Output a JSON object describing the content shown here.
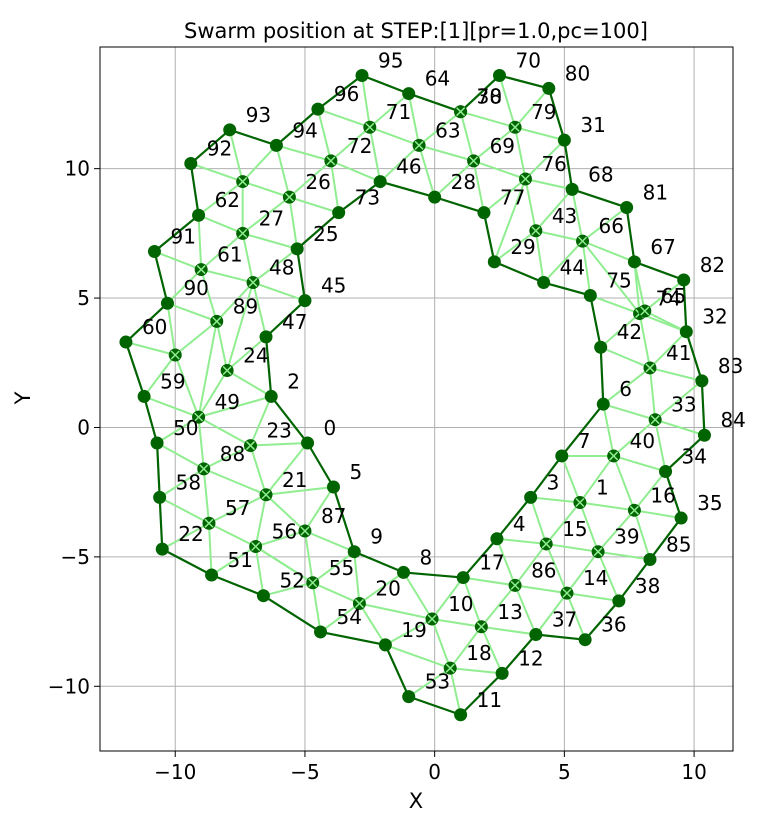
{
  "chart_data": {
    "type": "scatter",
    "title": "Swarm position at STEP:[1][pr=1.0,pc=100]",
    "xlabel": "X",
    "ylabel": "Y",
    "xlim": [
      -12.9,
      11.5
    ],
    "ylim": [
      -12.5,
      14.7
    ],
    "xticks": [
      -10,
      -5,
      0,
      5,
      10
    ],
    "yticks": [
      -10,
      -5,
      0,
      5,
      10
    ],
    "xtick_labels": [
      "−10",
      "−5",
      "0",
      "5",
      "10"
    ],
    "ytick_labels": [
      "−10",
      "−5",
      "0",
      "5",
      "10"
    ],
    "grid": true,
    "colors": {
      "boundary_node": "#006400",
      "boundary_edge": "#006400",
      "inner_edge": "#90ee90",
      "inner_node_fill": "#006400",
      "inner_node_hatch": "#90ee90"
    },
    "agents": [
      {
        "id": "0",
        "x": -4.9,
        "y": -0.6,
        "type": "boundary"
      },
      {
        "id": "2",
        "x": -6.3,
        "y": 1.2,
        "type": "boundary"
      },
      {
        "id": "5",
        "x": -3.9,
        "y": -2.3,
        "type": "boundary"
      },
      {
        "id": "9",
        "x": -3.1,
        "y": -4.8,
        "type": "boundary"
      },
      {
        "id": "8",
        "x": -1.2,
        "y": -5.6,
        "type": "boundary"
      },
      {
        "id": "17",
        "x": 1.1,
        "y": -5.8,
        "type": "boundary"
      },
      {
        "id": "4",
        "x": 2.4,
        "y": -4.3,
        "type": "boundary"
      },
      {
        "id": "3",
        "x": 3.7,
        "y": -2.7,
        "type": "boundary"
      },
      {
        "id": "7",
        "x": 4.9,
        "y": -1.1,
        "type": "boundary"
      },
      {
        "id": "6",
        "x": 6.5,
        "y": 0.9,
        "type": "boundary"
      },
      {
        "id": "42",
        "x": 6.4,
        "y": 3.1,
        "type": "boundary"
      },
      {
        "id": "75",
        "x": 6.0,
        "y": 5.1,
        "type": "boundary"
      },
      {
        "id": "44",
        "x": 4.2,
        "y": 5.6,
        "type": "boundary"
      },
      {
        "id": "29",
        "x": 2.3,
        "y": 6.4,
        "type": "boundary"
      },
      {
        "id": "77",
        "x": 1.9,
        "y": 8.3,
        "type": "boundary"
      },
      {
        "id": "28",
        "x": 0.0,
        "y": 8.9,
        "type": "boundary"
      },
      {
        "id": "46",
        "x": -2.1,
        "y": 9.5,
        "type": "boundary"
      },
      {
        "id": "73",
        "x": -3.7,
        "y": 8.3,
        "type": "boundary"
      },
      {
        "id": "25",
        "x": -5.3,
        "y": 6.9,
        "type": "boundary"
      },
      {
        "id": "45",
        "x": -5.0,
        "y": 4.9,
        "type": "boundary"
      },
      {
        "id": "47",
        "x": -6.5,
        "y": 3.5,
        "type": "boundary"
      },
      {
        "id": "95",
        "x": -2.8,
        "y": 13.6,
        "type": "boundary"
      },
      {
        "id": "64",
        "x": -1.0,
        "y": 12.9,
        "type": "boundary"
      },
      {
        "id": "30",
        "x": 1.0,
        "y": 12.2,
        "type": "boundary"
      },
      {
        "id": "70",
        "x": 2.5,
        "y": 13.6,
        "type": "boundary"
      },
      {
        "id": "80",
        "x": 4.4,
        "y": 13.1,
        "type": "boundary"
      },
      {
        "id": "31",
        "x": 5.0,
        "y": 11.1,
        "type": "boundary"
      },
      {
        "id": "68",
        "x": 5.3,
        "y": 9.2,
        "type": "boundary"
      },
      {
        "id": "81",
        "x": 7.4,
        "y": 8.5,
        "type": "boundary"
      },
      {
        "id": "67",
        "x": 7.7,
        "y": 6.4,
        "type": "boundary"
      },
      {
        "id": "82",
        "x": 9.6,
        "y": 5.7,
        "type": "boundary"
      },
      {
        "id": "32",
        "x": 9.7,
        "y": 3.7,
        "type": "boundary"
      },
      {
        "id": "83",
        "x": 10.3,
        "y": 1.8,
        "type": "boundary"
      },
      {
        "id": "84",
        "x": 10.4,
        "y": -0.3,
        "type": "boundary"
      },
      {
        "id": "34",
        "x": 8.9,
        "y": -1.7,
        "type": "boundary"
      },
      {
        "id": "35",
        "x": 9.5,
        "y": -3.5,
        "type": "boundary"
      },
      {
        "id": "85",
        "x": 8.3,
        "y": -5.1,
        "type": "boundary"
      },
      {
        "id": "38",
        "x": 7.1,
        "y": -6.7,
        "type": "boundary"
      },
      {
        "id": "36",
        "x": 5.8,
        "y": -8.2,
        "type": "boundary"
      },
      {
        "id": "37",
        "x": 3.9,
        "y": -8.0,
        "type": "boundary"
      },
      {
        "id": "12",
        "x": 2.6,
        "y": -9.5,
        "type": "boundary"
      },
      {
        "id": "11",
        "x": 1.0,
        "y": -11.1,
        "type": "boundary"
      },
      {
        "id": "53",
        "x": -1.0,
        "y": -10.4,
        "type": "boundary"
      },
      {
        "id": "19",
        "x": -1.9,
        "y": -8.4,
        "type": "boundary"
      },
      {
        "id": "54",
        "x": -4.4,
        "y": -7.9,
        "type": "boundary"
      },
      {
        "id": "52",
        "x": -6.6,
        "y": -6.5,
        "type": "boundary"
      },
      {
        "id": "51",
        "x": -8.6,
        "y": -5.7,
        "type": "boundary"
      },
      {
        "id": "22",
        "x": -10.5,
        "y": -4.7,
        "type": "boundary"
      },
      {
        "id": "58",
        "x": -10.6,
        "y": -2.7,
        "type": "boundary"
      },
      {
        "id": "50",
        "x": -10.7,
        "y": -0.6,
        "type": "boundary"
      },
      {
        "id": "59",
        "x": -11.2,
        "y": 1.2,
        "type": "boundary"
      },
      {
        "id": "60",
        "x": -11.9,
        "y": 3.3,
        "type": "boundary"
      },
      {
        "id": "90",
        "x": -10.3,
        "y": 4.8,
        "type": "boundary"
      },
      {
        "id": "91",
        "x": -10.8,
        "y": 6.8,
        "type": "boundary"
      },
      {
        "id": "62",
        "x": -9.1,
        "y": 8.2,
        "type": "boundary"
      },
      {
        "id": "92",
        "x": -9.4,
        "y": 10.2,
        "type": "boundary"
      },
      {
        "id": "93",
        "x": -7.9,
        "y": 11.5,
        "type": "boundary"
      },
      {
        "id": "94",
        "x": -6.1,
        "y": 10.9,
        "type": "boundary"
      },
      {
        "id": "96",
        "x": -4.5,
        "y": 12.3,
        "type": "boundary"
      },
      {
        "id": "21",
        "x": -6.5,
        "y": -2.6,
        "type": "inner"
      },
      {
        "id": "23",
        "x": -7.1,
        "y": -0.7,
        "type": "inner"
      },
      {
        "id": "88",
        "x": -8.9,
        "y": -1.6,
        "type": "inner"
      },
      {
        "id": "57",
        "x": -8.7,
        "y": -3.7,
        "type": "inner"
      },
      {
        "id": "56",
        "x": -6.9,
        "y": -4.6,
        "type": "inner"
      },
      {
        "id": "87",
        "x": -5.0,
        "y": -4.0,
        "type": "inner"
      },
      {
        "id": "55",
        "x": -4.7,
        "y": -6.0,
        "type": "inner"
      },
      {
        "id": "20",
        "x": -2.9,
        "y": -6.8,
        "type": "inner"
      },
      {
        "id": "10",
        "x": -0.1,
        "y": -7.4,
        "type": "inner"
      },
      {
        "id": "13",
        "x": 1.8,
        "y": -7.7,
        "type": "inner"
      },
      {
        "id": "18",
        "x": 0.6,
        "y": -9.3,
        "type": "inner"
      },
      {
        "id": "86",
        "x": 3.1,
        "y": -6.1,
        "type": "inner"
      },
      {
        "id": "14",
        "x": 5.1,
        "y": -6.4,
        "type": "inner"
      },
      {
        "id": "15",
        "x": 4.3,
        "y": -4.5,
        "type": "inner"
      },
      {
        "id": "39",
        "x": 6.3,
        "y": -4.8,
        "type": "inner"
      },
      {
        "id": "1",
        "x": 5.6,
        "y": -2.9,
        "type": "inner"
      },
      {
        "id": "16",
        "x": 7.7,
        "y": -3.2,
        "type": "inner"
      },
      {
        "id": "40",
        "x": 6.9,
        "y": -1.1,
        "type": "inner"
      },
      {
        "id": "33",
        "x": 8.5,
        "y": 0.3,
        "type": "inner"
      },
      {
        "id": "41",
        "x": 8.3,
        "y": 2.3,
        "type": "inner"
      },
      {
        "id": "74",
        "x": 7.9,
        "y": 4.4,
        "type": "inner"
      },
      {
        "id": "65",
        "x": 8.1,
        "y": 4.5,
        "type": "inner"
      },
      {
        "id": "66",
        "x": 5.7,
        "y": 7.2,
        "type": "inner"
      },
      {
        "id": "43",
        "x": 3.9,
        "y": 7.6,
        "type": "inner"
      },
      {
        "id": "76",
        "x": 3.5,
        "y": 9.6,
        "type": "inner"
      },
      {
        "id": "69",
        "x": 1.5,
        "y": 10.3,
        "type": "inner"
      },
      {
        "id": "79",
        "x": 3.1,
        "y": 11.6,
        "type": "inner"
      },
      {
        "id": "78",
        "x": 1.0,
        "y": 12.2,
        "type": "inner"
      },
      {
        "id": "63",
        "x": -0.6,
        "y": 10.9,
        "type": "inner"
      },
      {
        "id": "71",
        "x": -2.5,
        "y": 11.6,
        "type": "inner"
      },
      {
        "id": "72",
        "x": -4.0,
        "y": 10.3,
        "type": "inner"
      },
      {
        "id": "26",
        "x": -5.6,
        "y": 8.9,
        "type": "inner"
      },
      {
        "id": "27",
        "x": -7.4,
        "y": 7.5,
        "type": "inner"
      },
      {
        "id": "61",
        "x": -9.0,
        "y": 6.1,
        "type": "inner"
      },
      {
        "id": "48",
        "x": -7.0,
        "y": 5.6,
        "type": "inner"
      },
      {
        "id": "89",
        "x": -8.4,
        "y": 4.1,
        "type": "inner"
      },
      {
        "id": "24",
        "x": -8.0,
        "y": 2.2,
        "type": "inner"
      },
      {
        "id": "49",
        "x": -9.1,
        "y": 0.4,
        "type": "inner"
      },
      {
        "id": "9x",
        "x": -10.0,
        "y": 2.8,
        "type": "inner"
      },
      {
        "id": "62x",
        "x": -7.4,
        "y": 9.5,
        "type": "inner"
      }
    ],
    "boundary_loops": [
      [
        "0",
        "2",
        "47",
        "45",
        "25",
        "73",
        "46",
        "28",
        "77",
        "29",
        "44",
        "75",
        "42",
        "6",
        "7",
        "3",
        "4",
        "17",
        "8",
        "9",
        "5",
        "0"
      ],
      [
        "96",
        "95",
        "64",
        "30",
        "70",
        "80",
        "31",
        "68",
        "81",
        "67",
        "82",
        "32",
        "83",
        "84",
        "34",
        "35",
        "85",
        "38",
        "36",
        "37",
        "12",
        "11",
        "53",
        "19",
        "54",
        "52",
        "51",
        "22",
        "58",
        "50",
        "59",
        "60",
        "90",
        "91",
        "62",
        "92",
        "93",
        "94",
        "96"
      ]
    ],
    "inner_edges": [
      [
        "0",
        "23"
      ],
      [
        "2",
        "23"
      ],
      [
        "23",
        "21"
      ],
      [
        "21",
        "0"
      ],
      [
        "21",
        "5"
      ],
      [
        "21",
        "87"
      ],
      [
        "87",
        "5"
      ],
      [
        "87",
        "9"
      ],
      [
        "87",
        "56"
      ],
      [
        "56",
        "21"
      ],
      [
        "56",
        "57"
      ],
      [
        "57",
        "21"
      ],
      [
        "57",
        "88"
      ],
      [
        "88",
        "23"
      ],
      [
        "88",
        "21"
      ],
      [
        "88",
        "49"
      ],
      [
        "49",
        "23"
      ],
      [
        "49",
        "2"
      ],
      [
        "49",
        "24"
      ],
      [
        "24",
        "2"
      ],
      [
        "24",
        "47"
      ],
      [
        "24",
        "89"
      ],
      [
        "89",
        "49"
      ],
      [
        "89",
        "48"
      ],
      [
        "48",
        "47"
      ],
      [
        "48",
        "24"
      ],
      [
        "48",
        "45"
      ],
      [
        "48",
        "25"
      ],
      [
        "48",
        "61"
      ],
      [
        "61",
        "89"
      ],
      [
        "61",
        "27"
      ],
      [
        "27",
        "48"
      ],
      [
        "27",
        "25"
      ],
      [
        "27",
        "26"
      ],
      [
        "26",
        "25"
      ],
      [
        "26",
        "73"
      ],
      [
        "26",
        "72"
      ],
      [
        "72",
        "73"
      ],
      [
        "72",
        "46"
      ],
      [
        "72",
        "71"
      ],
      [
        "71",
        "46"
      ],
      [
        "71",
        "63"
      ],
      [
        "63",
        "46"
      ],
      [
        "63",
        "28"
      ],
      [
        "63",
        "69"
      ],
      [
        "69",
        "28"
      ],
      [
        "69",
        "77"
      ],
      [
        "69",
        "76"
      ],
      [
        "76",
        "77"
      ],
      [
        "76",
        "29"
      ],
      [
        "76",
        "43"
      ],
      [
        "43",
        "29"
      ],
      [
        "43",
        "44"
      ],
      [
        "43",
        "66"
      ],
      [
        "66",
        "44"
      ],
      [
        "66",
        "75"
      ],
      [
        "66",
        "74"
      ],
      [
        "74",
        "75"
      ],
      [
        "74",
        "42"
      ],
      [
        "74",
        "41"
      ],
      [
        "41",
        "42"
      ],
      [
        "41",
        "6"
      ],
      [
        "41",
        "33"
      ],
      [
        "33",
        "6"
      ],
      [
        "33",
        "40"
      ],
      [
        "40",
        "6"
      ],
      [
        "40",
        "7"
      ],
      [
        "40",
        "1"
      ],
      [
        "1",
        "7"
      ],
      [
        "1",
        "3"
      ],
      [
        "1",
        "15"
      ],
      [
        "15",
        "3"
      ],
      [
        "15",
        "4"
      ],
      [
        "15",
        "86"
      ],
      [
        "86",
        "4"
      ],
      [
        "86",
        "17"
      ],
      [
        "86",
        "13"
      ],
      [
        "13",
        "17"
      ],
      [
        "13",
        "10"
      ],
      [
        "10",
        "17"
      ],
      [
        "10",
        "8"
      ],
      [
        "10",
        "20"
      ],
      [
        "20",
        "8"
      ],
      [
        "20",
        "9"
      ],
      [
        "20",
        "55"
      ],
      [
        "55",
        "9"
      ],
      [
        "55",
        "87"
      ],
      [
        "55",
        "56"
      ],
      [
        "55",
        "52"
      ],
      [
        "55",
        "54"
      ],
      [
        "20",
        "54"
      ],
      [
        "20",
        "19"
      ],
      [
        "10",
        "19"
      ],
      [
        "10",
        "18"
      ],
      [
        "18",
        "19"
      ],
      [
        "18",
        "53"
      ],
      [
        "18",
        "11"
      ],
      [
        "18",
        "12"
      ],
      [
        "18",
        "13"
      ],
      [
        "13",
        "12"
      ],
      [
        "13",
        "37"
      ],
      [
        "86",
        "37"
      ],
      [
        "86",
        "14"
      ],
      [
        "14",
        "37"
      ],
      [
        "14",
        "36"
      ],
      [
        "14",
        "38"
      ],
      [
        "14",
        "39"
      ],
      [
        "39",
        "38"
      ],
      [
        "39",
        "85"
      ],
      [
        "39",
        "15"
      ],
      [
        "39",
        "16"
      ],
      [
        "16",
        "85"
      ],
      [
        "16",
        "35"
      ],
      [
        "16",
        "34"
      ],
      [
        "16",
        "40"
      ],
      [
        "16",
        "1"
      ],
      [
        "14",
        "15"
      ],
      [
        "39",
        "1"
      ],
      [
        "40",
        "34"
      ],
      [
        "33",
        "34"
      ],
      [
        "33",
        "84"
      ],
      [
        "33",
        "83"
      ],
      [
        "41",
        "83"
      ],
      [
        "41",
        "32"
      ],
      [
        "74",
        "32"
      ],
      [
        "74",
        "65"
      ],
      [
        "65",
        "32"
      ],
      [
        "65",
        "82"
      ],
      [
        "65",
        "67"
      ],
      [
        "74",
        "67"
      ],
      [
        "66",
        "67"
      ],
      [
        "66",
        "81"
      ],
      [
        "66",
        "68"
      ],
      [
        "43",
        "68"
      ],
      [
        "76",
        "68"
      ],
      [
        "76",
        "31"
      ],
      [
        "76",
        "79"
      ],
      [
        "79",
        "31"
      ],
      [
        "79",
        "80"
      ],
      [
        "79",
        "70"
      ],
      [
        "79",
        "78"
      ],
      [
        "78",
        "70"
      ],
      [
        "78",
        "30"
      ],
      [
        "69",
        "78"
      ],
      [
        "69",
        "79"
      ],
      [
        "63",
        "30"
      ],
      [
        "63",
        "64"
      ],
      [
        "71",
        "64"
      ],
      [
        "71",
        "95"
      ],
      [
        "71",
        "96"
      ],
      [
        "72",
        "96"
      ],
      [
        "72",
        "94"
      ],
      [
        "26",
        "94"
      ],
      [
        "26",
        "62x"
      ],
      [
        "62x",
        "94"
      ],
      [
        "62x",
        "93"
      ],
      [
        "62x",
        "92"
      ],
      [
        "62x",
        "62"
      ],
      [
        "27",
        "62"
      ],
      [
        "27",
        "62x"
      ],
      [
        "61",
        "62"
      ],
      [
        "61",
        "91"
      ],
      [
        "61",
        "90"
      ],
      [
        "89",
        "90"
      ],
      [
        "89",
        "9x"
      ],
      [
        "9x",
        "90"
      ],
      [
        "9x",
        "60"
      ],
      [
        "9x",
        "59"
      ],
      [
        "9x",
        "49"
      ],
      [
        "49",
        "59"
      ],
      [
        "49",
        "50"
      ],
      [
        "88",
        "50"
      ],
      [
        "88",
        "58"
      ],
      [
        "57",
        "58"
      ],
      [
        "57",
        "22"
      ],
      [
        "57",
        "51"
      ],
      [
        "56",
        "51"
      ],
      [
        "56",
        "52"
      ],
      [
        "56",
        "55"
      ]
    ],
    "label_offsets_note": "labels drawn to the upper-right of each agent marker"
  }
}
